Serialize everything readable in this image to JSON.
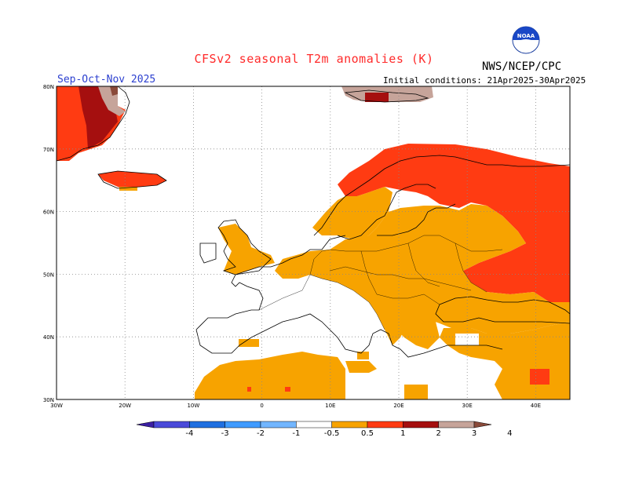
{
  "title": "CFSv2 seasonal T2m anomalies (K)",
  "season": "Sep-Oct-Nov 2025",
  "initial_conditions": "Initial conditions: 21Apr2025-30Apr2025",
  "agency": "NWS/NCEP/CPC",
  "logo_text": "NOAA",
  "map": {
    "lon_labels": [
      "30W",
      "20W",
      "10W",
      "0",
      "10E",
      "20E",
      "30E",
      "40E"
    ],
    "lat_labels": [
      "80N",
      "70N",
      "60N",
      "50N",
      "40N",
      "30N"
    ],
    "lon_range": [
      -30,
      45
    ],
    "lat_range": [
      30,
      80
    ],
    "grid_style": "dotted"
  },
  "colorbar": {
    "labels": [
      "-4",
      "-3",
      "-2",
      "-1",
      "-0.5",
      "0.5",
      "1",
      "2",
      "3",
      "4"
    ],
    "colors": [
      "#3b1fa3",
      "#4a4ad9",
      "#1f6fe0",
      "#3f9bff",
      "#72b6ff",
      "#ffffff",
      "#f7a300",
      "#ff3b12",
      "#a50f0f",
      "#c6a49a",
      "#8a4a3a"
    ]
  },
  "palette": {
    "orange": "#f7a300",
    "red": "#ff3b12",
    "darkred": "#a50f0f",
    "pink": "#c6a49a",
    "brown": "#8a4a3a"
  }
}
